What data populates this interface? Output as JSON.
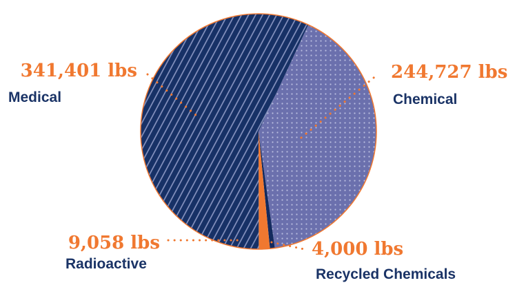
{
  "chart_data": {
    "type": "pie",
    "title": "",
    "unit": "lbs",
    "slices": [
      {
        "label": "Chemical",
        "value": 244727,
        "value_label": "244,727 lbs",
        "color": "#6b70ad",
        "pattern": "dots"
      },
      {
        "label": "Recycled Chemicals",
        "value": 4000,
        "value_label": "4,000 lbs",
        "color": "#132a5e",
        "pattern": "solid"
      },
      {
        "label": "Radioactive",
        "value": 9058,
        "value_label": "9,058 lbs",
        "color": "#f07830",
        "pattern": "solid"
      },
      {
        "label": "Medical",
        "value": 341401,
        "value_label": "341,401 lbs",
        "color": "#173166",
        "pattern": "stripes"
      }
    ],
    "start_angle_deg": 25,
    "direction": "clockwise",
    "legend": "none",
    "value_color": "#f07830",
    "label_color": "#1a3366"
  }
}
